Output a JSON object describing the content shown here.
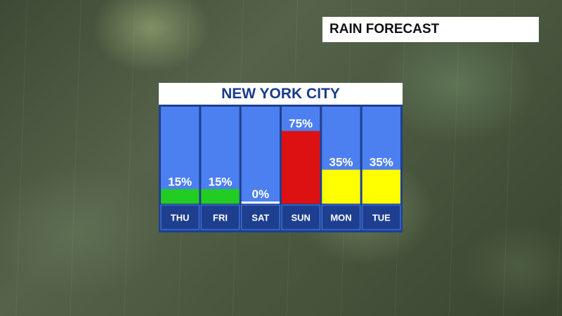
{
  "header": {
    "title": "RAIN FORECAST"
  },
  "chart_data": {
    "type": "bar",
    "title": "NEW YORK CITY",
    "categories": [
      "THU",
      "FRI",
      "SAT",
      "SUN",
      "MON",
      "TUE"
    ],
    "values": [
      15,
      15,
      0,
      75,
      35,
      35
    ],
    "value_labels": [
      "15%",
      "15%",
      "0%",
      "75%",
      "35%",
      "35%"
    ],
    "bar_colors": [
      "#22cc22",
      "#22cc22",
      "#ffffff",
      "#dd1111",
      "#ffff00",
      "#ffff00"
    ],
    "ylim": [
      0,
      100
    ],
    "xlabel": "",
    "ylabel": "",
    "grid": false,
    "legend": "none"
  },
  "colors": {
    "column_bg": "#4c80f0",
    "day_band": "#1e3f8f",
    "title_text": "#1a3a8a"
  }
}
